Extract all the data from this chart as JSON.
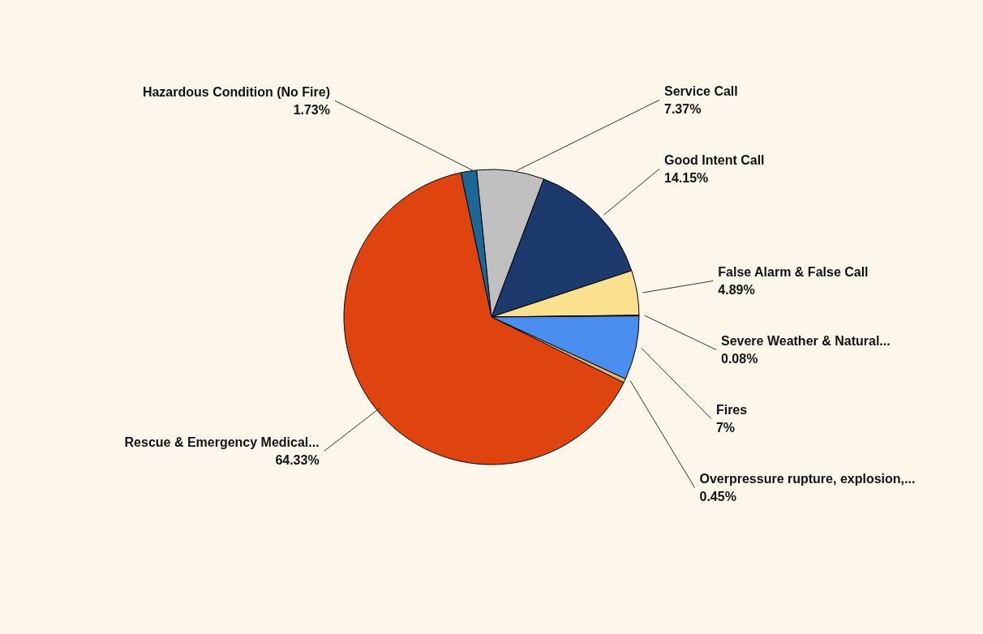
{
  "chart_data": {
    "type": "pie",
    "categories": [
      "Hazardous Condition (No Fire)",
      "Service Call",
      "Good Intent Call",
      "False Alarm & False Call",
      "Severe Weather & Natural...",
      "Fires",
      "Overpressure rupture, explosion,...",
      "Rescue & Emergency Medical..."
    ],
    "values": [
      1.73,
      7.37,
      14.15,
      4.89,
      0.08,
      7,
      0.45,
      64.33
    ],
    "value_labels": [
      "1.73%",
      "7.37%",
      "14.15%",
      "4.89%",
      "0.08%",
      "7%",
      "0.45%",
      "64.33%"
    ],
    "colors": [
      "#1b6796",
      "#c0c0c0",
      "#1c3a6b",
      "#fbe08d",
      "#e9d9a0",
      "#4a8ef0",
      "#e6b85a",
      "#e0440e"
    ]
  }
}
